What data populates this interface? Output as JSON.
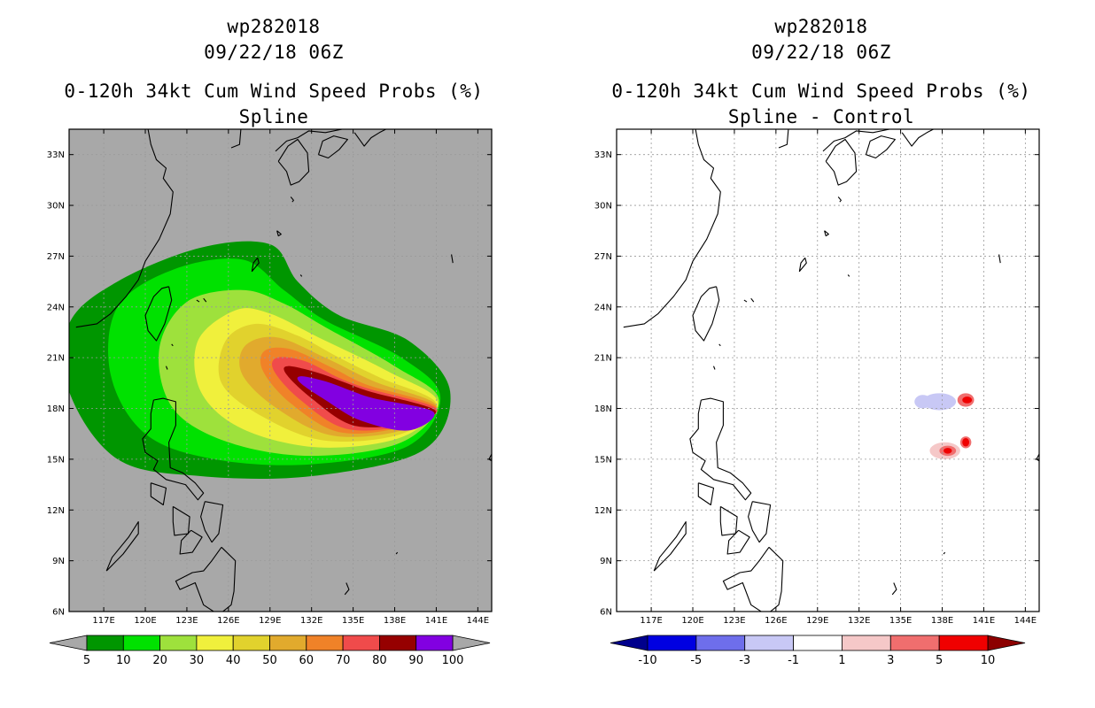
{
  "panels": [
    {
      "id": "spline",
      "storm_id": "wp282018",
      "datetime": "09/22/18 06Z",
      "product": "0-120h 34kt Cum Wind Speed Probs (%)",
      "subtitle": "Spline",
      "background": "#a8a8a8",
      "colorbar": {
        "labels": [
          "5",
          "10",
          "20",
          "30",
          "40",
          "50",
          "60",
          "70",
          "80",
          "90",
          "100"
        ],
        "colors": [
          "#009600",
          "#00e100",
          "#9ee13c",
          "#f0f03c",
          "#e1d22d",
          "#e1aa2d",
          "#f08228",
          "#f04b4b",
          "#960000",
          "#8200e1"
        ],
        "under_color": "#a8a8a8",
        "over_color": "#a8a8a8"
      }
    },
    {
      "id": "spline_minus_control",
      "storm_id": "wp282018",
      "datetime": "09/22/18 06Z",
      "product": "0-120h 34kt Cum Wind Speed Probs (%)",
      "subtitle": "Spline - Control",
      "background": "#ffffff",
      "colorbar": {
        "labels": [
          "-10",
          "-5",
          "-3",
          "-1",
          "1",
          "3",
          "5",
          "10"
        ],
        "colors": [
          "#0000e1",
          "#6e6eeb",
          "#c8c8f5",
          "#ffffff",
          "#f5c8c8",
          "#f06e6e",
          "#f00000"
        ],
        "under_color": "#00008c",
        "over_color": "#8c0000"
      }
    }
  ],
  "map": {
    "lon_ticks": [
      "117E",
      "120E",
      "123E",
      "126E",
      "129E",
      "132E",
      "135E",
      "138E",
      "141E",
      "144E"
    ],
    "lat_ticks": [
      "33N",
      "30N",
      "27N",
      "24N",
      "21N",
      "18N",
      "15N",
      "12N",
      "9N",
      "6N"
    ],
    "lon_range": [
      114.5,
      145.0
    ],
    "lat_range": [
      6.0,
      34.5
    ]
  },
  "chart_data": [
    {
      "type": "heatmap",
      "title": "0-120h 34kt Cum Wind Speed Probs (%) - Spline",
      "units": "%",
      "levels": [
        5,
        10,
        20,
        30,
        40,
        50,
        60,
        70,
        80,
        90,
        100
      ],
      "max_probability_region": {
        "lon": [
          130,
          141
        ],
        "lat": [
          16.5,
          19.5
        ],
        "value": 90
      },
      "contours": [
        {
          "level": 5,
          "pts": [
            [
              139,
              22
            ],
            [
              142,
              19
            ],
            [
              140,
              15.5
            ],
            [
              132,
              14
            ],
            [
              124,
              14
            ],
            [
              118,
              15
            ],
            [
              114.5,
              19
            ],
            [
              114.5,
              23
            ],
            [
              118,
              25.5
            ],
            [
              124,
              27.5
            ],
            [
              129,
              27.7
            ],
            [
              131,
              25.5
            ],
            [
              134,
              23.5
            ]
          ]
        },
        {
          "level": 10,
          "pts": [
            [
              138.5,
              21
            ],
            [
              141.3,
              18.7
            ],
            [
              139,
              15.8
            ],
            [
              132,
              14.7
            ],
            [
              125,
              15
            ],
            [
              120,
              16.5
            ],
            [
              117.5,
              20
            ],
            [
              118,
              24
            ],
            [
              122,
              26.2
            ],
            [
              127,
              26.8
            ],
            [
              130,
              25
            ],
            [
              133,
              23.2
            ]
          ]
        },
        {
          "level": 20,
          "pts": [
            [
              138,
              20.5
            ],
            [
              141.2,
              18.5
            ],
            [
              138.5,
              16
            ],
            [
              132,
              15.2
            ],
            [
              126,
              16
            ],
            [
              122,
              18
            ],
            [
              121,
              21.5
            ],
            [
              123,
              24.3
            ],
            [
              127,
              25
            ],
            [
              130,
              24.2
            ],
            [
              133,
              22.8
            ]
          ]
        },
        {
          "level": 30,
          "pts": [
            [
              137.5,
              20.2
            ],
            [
              141.1,
              18.4
            ],
            [
              138.5,
              16.3
            ],
            [
              132.5,
              15.7
            ],
            [
              127,
              16.8
            ],
            [
              124,
              19
            ],
            [
              123.8,
              22
            ],
            [
              126.5,
              23.8
            ],
            [
              129,
              23.6
            ],
            [
              132.5,
              22.2
            ]
          ]
        },
        {
          "level": 40,
          "pts": [
            [
              137,
              19.8
            ],
            [
              141,
              18.3
            ],
            [
              138.5,
              16.5
            ],
            [
              133,
              16.1
            ],
            [
              128.5,
              17.5
            ],
            [
              125.5,
              19.5
            ],
            [
              125.8,
              22
            ],
            [
              128,
              23
            ],
            [
              131,
              22.3
            ],
            [
              134,
              21
            ]
          ]
        },
        {
          "level": 50,
          "pts": [
            [
              136.5,
              19.6
            ],
            [
              141,
              18.2
            ],
            [
              138.5,
              16.7
            ],
            [
              133.5,
              16.4
            ],
            [
              129.5,
              18
            ],
            [
              127,
              20
            ],
            [
              127.2,
              21.7
            ],
            [
              129.5,
              22.2
            ],
            [
              133,
              21
            ]
          ]
        },
        {
          "level": 60,
          "pts": [
            [
              136,
              19.4
            ],
            [
              141,
              18.1
            ],
            [
              138.5,
              16.9
            ],
            [
              134,
              16.6
            ],
            [
              130.5,
              18.3
            ],
            [
              128.5,
              20.2
            ],
            [
              128.6,
              21.4
            ],
            [
              130.5,
              21.5
            ],
            [
              133.5,
              20.4
            ]
          ]
        },
        {
          "level": 70,
          "pts": [
            [
              136,
              19.2
            ],
            [
              141,
              18
            ],
            [
              138.8,
              17
            ],
            [
              134.5,
              16.8
            ],
            [
              131.2,
              18.5
            ],
            [
              129.3,
              20.2
            ],
            [
              129.5,
              21
            ],
            [
              131.5,
              20.8
            ],
            [
              134,
              19.8
            ]
          ]
        },
        {
          "level": 80,
          "pts": [
            [
              136.2,
              19
            ],
            [
              140.9,
              17.9
            ],
            [
              138.8,
              17.1
            ],
            [
              135,
              17
            ],
            [
              132,
              18.6
            ],
            [
              130.2,
              20
            ],
            [
              130.3,
              20.5
            ],
            [
              132.5,
              20.1
            ],
            [
              134.5,
              19.5
            ]
          ]
        },
        {
          "level": 90,
          "pts": [
            [
              136.5,
              18.6
            ],
            [
              140.8,
              17.8
            ],
            [
              139,
              16.7
            ],
            [
              135.5,
              17.3
            ],
            [
              133,
              18.5
            ],
            [
              131.2,
              19.5
            ],
            [
              131.2,
              19.9
            ],
            [
              133,
              19.6
            ],
            [
              135,
              19
            ]
          ]
        }
      ]
    },
    {
      "type": "heatmap",
      "title": "0-120h 34kt Cum Wind Speed Probs (%) - Spline - Control",
      "units": "%",
      "levels": [
        -10,
        -5,
        -3,
        -1,
        1,
        3,
        5,
        10
      ],
      "blobs": [
        {
          "lon": 137.8,
          "lat": 18.4,
          "value": -2,
          "color_class": "-3 to -1",
          "lon_radius": 1.2,
          "lat_radius": 0.5
        },
        {
          "lon": 136.6,
          "lat": 18.4,
          "value": -2,
          "color_class": "-3 to -1",
          "lon_radius": 0.6,
          "lat_radius": 0.4
        },
        {
          "lon": 139.7,
          "lat": 18.5,
          "value": 3,
          "color_class": "1 to 3",
          "lon_radius": 0.6,
          "lat_radius": 0.4
        },
        {
          "lon": 139.8,
          "lat": 18.5,
          "value": 6,
          "color_class": "5 to 10",
          "lon_radius": 0.35,
          "lat_radius": 0.2
        },
        {
          "lon": 138.2,
          "lat": 15.5,
          "value": 2,
          "color_class": "1 to 3",
          "lon_radius": 1.1,
          "lat_radius": 0.5
        },
        {
          "lon": 138.4,
          "lat": 15.5,
          "value": 4,
          "color_class": "3 to 5",
          "lon_radius": 0.6,
          "lat_radius": 0.3
        },
        {
          "lon": 138.4,
          "lat": 15.5,
          "value": 6,
          "color_class": "5 to 10",
          "lon_radius": 0.3,
          "lat_radius": 0.17
        },
        {
          "lon": 139.7,
          "lat": 16.0,
          "value": 4,
          "color_class": "3 to 5",
          "lon_radius": 0.4,
          "lat_radius": 0.35
        },
        {
          "lon": 139.7,
          "lat": 16.0,
          "value": 6,
          "color_class": "5 to 10",
          "lon_radius": 0.25,
          "lat_radius": 0.25
        }
      ]
    }
  ],
  "coastlines": [
    [
      [
        115.0,
        22.8
      ],
      [
        116.5,
        23.0
      ],
      [
        117.5,
        23.6
      ],
      [
        118.6,
        24.6
      ],
      [
        119.5,
        25.6
      ],
      [
        120.0,
        26.7
      ],
      [
        121.0,
        28.0
      ],
      [
        121.8,
        29.5
      ],
      [
        122.0,
        30.8
      ],
      [
        121.3,
        31.6
      ],
      [
        121.5,
        32.2
      ],
      [
        120.8,
        32.7
      ],
      [
        120.4,
        33.6
      ],
      [
        120.2,
        34.5
      ]
    ],
    [
      [
        121.7,
        25.2
      ],
      [
        121.9,
        24.4
      ],
      [
        121.4,
        23.0
      ],
      [
        120.8,
        22.0
      ],
      [
        120.2,
        22.6
      ],
      [
        120.0,
        23.5
      ],
      [
        120.6,
        24.6
      ],
      [
        121.2,
        25.1
      ],
      [
        121.7,
        25.2
      ]
    ],
    [
      [
        120.6,
        18.5
      ],
      [
        121.3,
        18.6
      ],
      [
        122.2,
        18.4
      ],
      [
        122.2,
        17.0
      ],
      [
        121.7,
        16.0
      ],
      [
        121.8,
        14.5
      ],
      [
        122.7,
        14.2
      ],
      [
        123.6,
        13.6
      ],
      [
        124.2,
        13.0
      ],
      [
        123.8,
        12.6
      ],
      [
        122.9,
        13.5
      ],
      [
        121.5,
        13.8
      ],
      [
        120.6,
        14.4
      ],
      [
        120.9,
        14.9
      ],
      [
        120.0,
        15.4
      ],
      [
        119.8,
        16.2
      ],
      [
        120.4,
        16.8
      ],
      [
        120.4,
        17.7
      ],
      [
        120.6,
        18.5
      ]
    ],
    [
      [
        124.3,
        12.5
      ],
      [
        125.6,
        12.3
      ],
      [
        125.3,
        10.6
      ],
      [
        124.8,
        10.1
      ],
      [
        124.3,
        10.8
      ],
      [
        124.0,
        11.6
      ],
      [
        124.3,
        12.5
      ]
    ],
    [
      [
        122.0,
        12.2
      ],
      [
        123.2,
        11.6
      ],
      [
        123.1,
        10.6
      ],
      [
        122.1,
        10.5
      ],
      [
        122.0,
        11.3
      ],
      [
        122.0,
        12.2
      ]
    ],
    [
      [
        123.3,
        10.8
      ],
      [
        124.1,
        10.4
      ],
      [
        123.4,
        9.5
      ],
      [
        122.5,
        9.4
      ],
      [
        122.6,
        10.2
      ],
      [
        123.3,
        10.8
      ]
    ],
    [
      [
        125.5,
        9.8
      ],
      [
        126.5,
        9.0
      ],
      [
        126.4,
        7.2
      ],
      [
        126.2,
        6.4
      ],
      [
        125.3,
        5.8
      ],
      [
        124.2,
        6.4
      ],
      [
        123.6,
        7.7
      ],
      [
        122.5,
        7.3
      ],
      [
        122.2,
        7.8
      ],
      [
        123.4,
        8.3
      ],
      [
        124.2,
        8.4
      ],
      [
        124.8,
        9.0
      ],
      [
        125.5,
        9.8
      ]
    ],
    [
      [
        117.2,
        8.4
      ],
      [
        118.4,
        9.4
      ],
      [
        119.5,
        10.6
      ],
      [
        119.5,
        11.3
      ],
      [
        118.8,
        10.4
      ],
      [
        117.6,
        9.2
      ],
      [
        117.2,
        8.4
      ]
    ],
    [
      [
        120.4,
        13.6
      ],
      [
        121.5,
        13.3
      ],
      [
        121.3,
        12.3
      ],
      [
        120.4,
        12.8
      ],
      [
        120.4,
        13.6
      ]
    ],
    [
      [
        126.2,
        33.4
      ],
      [
        126.8,
        33.6
      ],
      [
        126.9,
        34.5
      ]
    ],
    [
      [
        129.4,
        33.2
      ],
      [
        130.2,
        33.8
      ],
      [
        131.0,
        34.0
      ],
      [
        131.8,
        34.4
      ],
      [
        133.0,
        34.3
      ],
      [
        134.2,
        34.5
      ]
    ],
    [
      [
        129.6,
        32.6
      ],
      [
        130.2,
        32.0
      ],
      [
        130.5,
        31.2
      ],
      [
        131.1,
        31.4
      ],
      [
        131.8,
        32.0
      ],
      [
        131.7,
        33.1
      ],
      [
        131.0,
        33.9
      ],
      [
        130.3,
        33.5
      ],
      [
        129.6,
        32.6
      ]
    ],
    [
      [
        132.5,
        33.0
      ],
      [
        133.2,
        32.8
      ],
      [
        134.0,
        33.3
      ],
      [
        134.6,
        33.9
      ],
      [
        133.6,
        34.1
      ],
      [
        132.8,
        33.8
      ],
      [
        132.5,
        33.0
      ]
    ],
    [
      [
        135.1,
        34.3
      ],
      [
        135.8,
        33.5
      ],
      [
        136.3,
        34.0
      ],
      [
        136.9,
        34.3
      ],
      [
        137.6,
        34.6
      ]
    ],
    [
      [
        138.0,
        34.6
      ],
      [
        138.8,
        34.6
      ],
      [
        139.6,
        35.0
      ]
    ],
    [
      [
        130.5,
        30.5
      ],
      [
        130.7,
        30.3
      ],
      [
        130.6,
        30.2
      ]
    ],
    [
      [
        129.5,
        28.5
      ],
      [
        129.8,
        28.3
      ],
      [
        129.6,
        28.2
      ],
      [
        129.5,
        28.5
      ]
    ],
    [
      [
        128.1,
        26.9
      ],
      [
        128.2,
        26.6
      ],
      [
        127.7,
        26.1
      ],
      [
        127.8,
        26.6
      ],
      [
        128.1,
        26.9
      ]
    ],
    [
      [
        124.2,
        24.5
      ],
      [
        124.4,
        24.3
      ]
    ],
    [
      [
        123.7,
        24.4
      ],
      [
        123.9,
        24.3
      ]
    ],
    [
      [
        131.2,
        25.9
      ],
      [
        131.3,
        25.8
      ]
    ],
    [
      [
        142.1,
        27.1
      ],
      [
        142.2,
        26.6
      ]
    ],
    [
      [
        145.0,
        15.3
      ],
      [
        144.8,
        15.0
      ],
      [
        145.0,
        14.9
      ]
    ],
    [
      [
        134.5,
        7.7
      ],
      [
        134.7,
        7.3
      ],
      [
        134.4,
        7.0
      ]
    ],
    [
      [
        138.2,
        9.5
      ],
      [
        138.1,
        9.4
      ]
    ],
    [
      [
        121.5,
        20.5
      ],
      [
        121.6,
        20.3
      ]
    ],
    [
      [
        121.9,
        21.8
      ],
      [
        122.0,
        21.7
      ]
    ]
  ]
}
